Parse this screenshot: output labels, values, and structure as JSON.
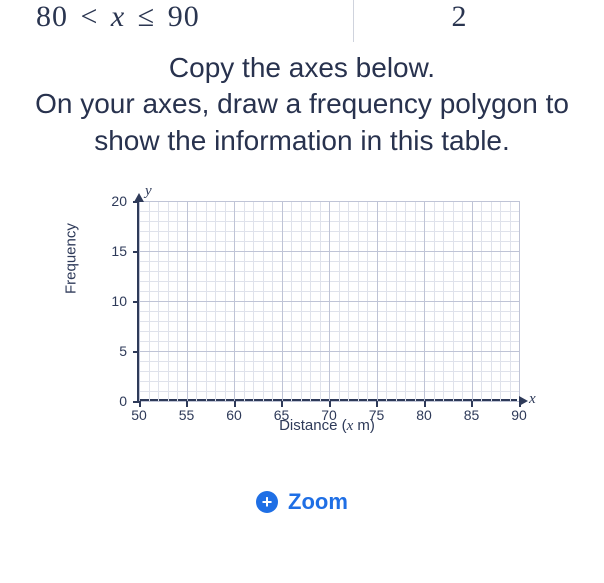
{
  "table_row": {
    "interval_low": "80",
    "interval_high": "90",
    "inequality_display": "80 < x ≤ 90",
    "frequency": "2"
  },
  "instructions": {
    "line1": "Copy the axes below.",
    "line2": "On your axes, draw a frequency polygon to show the information in this table."
  },
  "chart": {
    "type": "empty-grid",
    "xlabel": "Distance (x m)",
    "xlabel_html": "Distance (<span class='italic-x'>x</span> m)",
    "ylabel": "Frequency",
    "x_axis_end": "x",
    "y_axis_end": "y",
    "xlim": [
      50,
      90
    ],
    "ylim": [
      0,
      20
    ],
    "x_major_step": 5,
    "y_major_step": 5,
    "x_minor_step": 1,
    "y_minor_step": 1,
    "x_ticks": [
      50,
      55,
      60,
      65,
      70,
      75,
      80,
      85,
      90
    ],
    "y_ticks": [
      0,
      5,
      10,
      15,
      20
    ],
    "minor_grid_color": "#dfe2eb",
    "major_grid_color": "#bfc4d6",
    "axis_color": "#2e3a59",
    "background_color": "#ffffff",
    "tick_fontsize": 14,
    "label_fontsize": 15
  },
  "zoom": {
    "label": "Zoom",
    "icon": "plus-circle-icon",
    "color": "#1f6fe5"
  }
}
